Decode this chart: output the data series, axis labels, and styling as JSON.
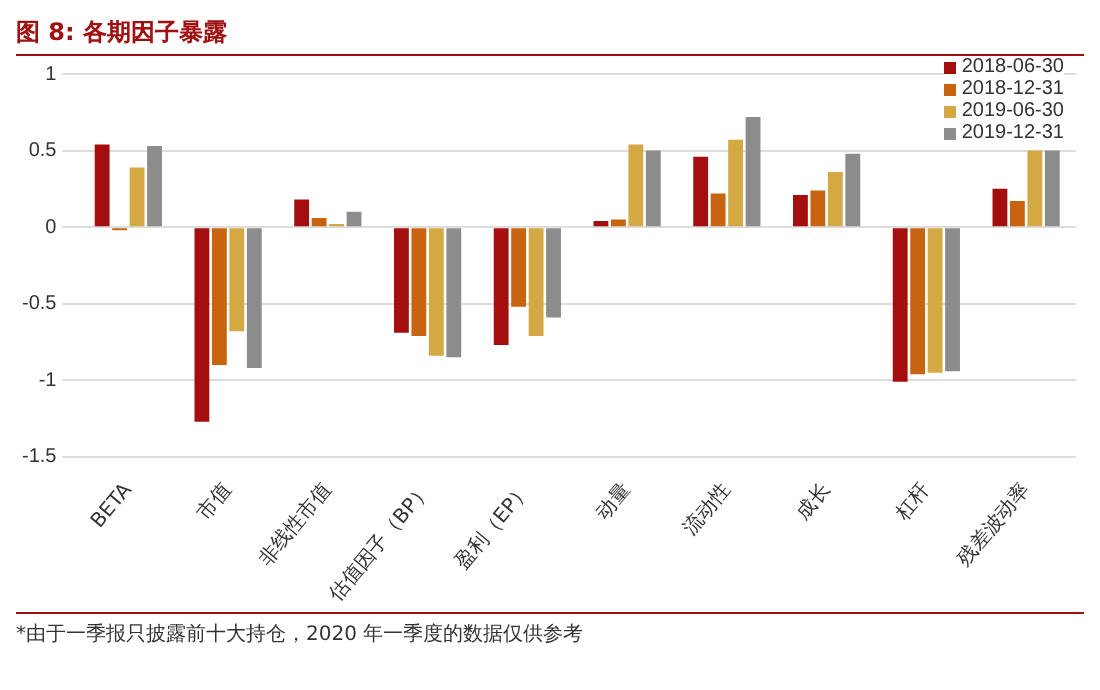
{
  "chart_data": {
    "type": "bar",
    "title": "图 8: 各期因子暴露",
    "categories": [
      "BETA",
      "市值",
      "非线性市值",
      "估值因子（BP）",
      "盈利（EP）",
      "动量",
      "流动性",
      "成长",
      "杠杆",
      "残差波动率"
    ],
    "series": [
      {
        "name": "2018-06-30",
        "color": "#a50e0e",
        "values": [
          0.54,
          -1.27,
          0.18,
          -0.69,
          -0.77,
          0.04,
          0.46,
          0.21,
          -1.01,
          0.25
        ]
      },
      {
        "name": "2018-12-31",
        "color": "#c8640f",
        "values": [
          -0.02,
          -0.9,
          0.06,
          -0.71,
          -0.52,
          0.05,
          0.22,
          0.24,
          -0.96,
          0.17
        ]
      },
      {
        "name": "2019-06-30",
        "color": "#d4a843",
        "values": [
          0.39,
          -0.68,
          0.02,
          -0.84,
          -0.71,
          0.54,
          0.57,
          0.36,
          -0.95,
          0.5
        ]
      },
      {
        "name": "2019-12-31",
        "color": "#8c8c8c",
        "values": [
          0.53,
          -0.92,
          0.1,
          -0.85,
          -0.59,
          0.5,
          0.72,
          0.48,
          -0.94,
          0.5
        ]
      }
    ],
    "ylim": [
      -1.5,
      1
    ],
    "yticks": [
      -1.5,
      -1,
      -0.5,
      0,
      0.5,
      1
    ],
    "grid": "y",
    "legend": "top right",
    "annotations": [
      "*由于一季报只披露前十大持仓，2020 年一季度的数据仅供参考"
    ]
  }
}
